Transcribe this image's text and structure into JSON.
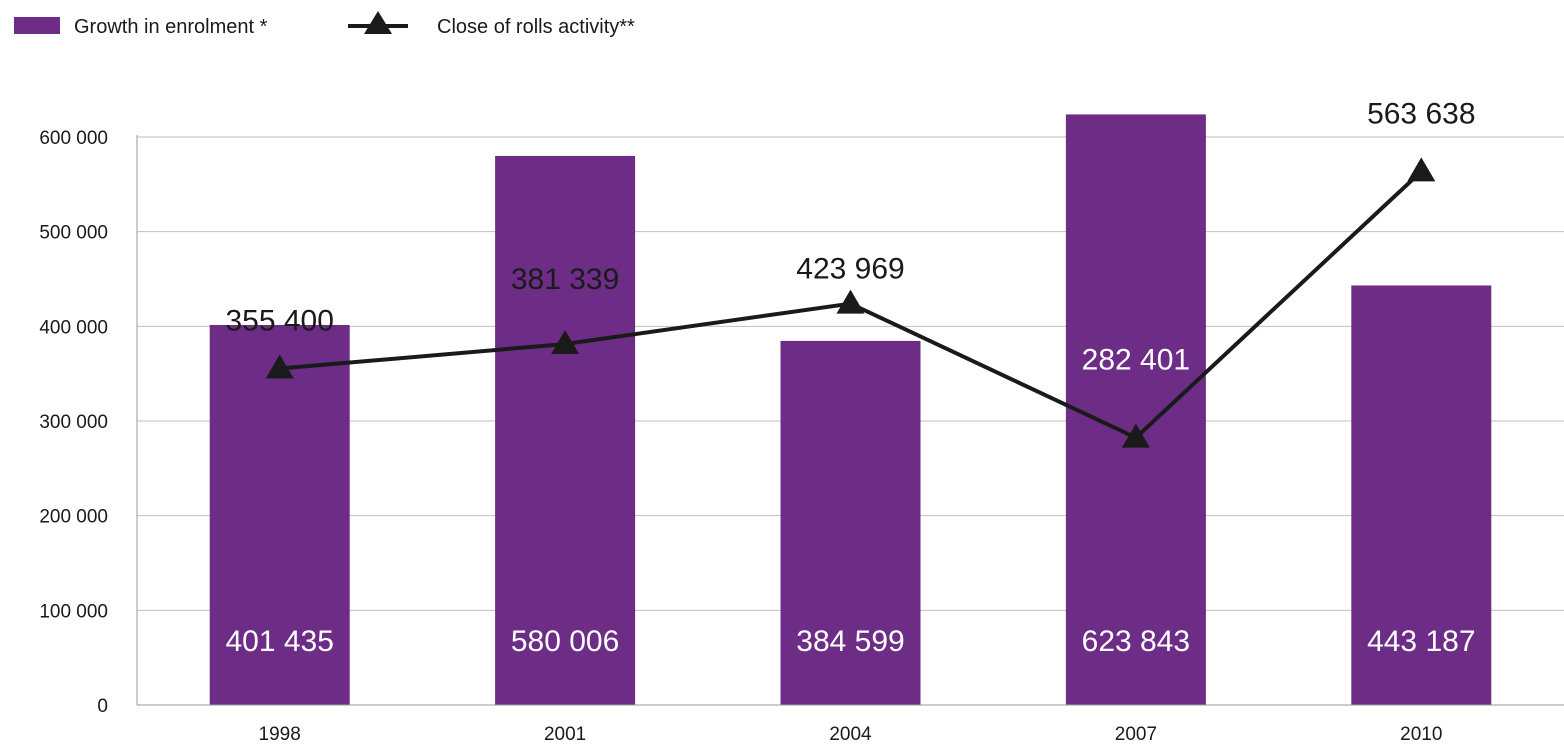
{
  "chart_data": {
    "type": "bar",
    "categories": [
      "1998",
      "2001",
      "2004",
      "2007",
      "2010"
    ],
    "series": [
      {
        "name": "Growth in enrolment *",
        "type": "bar",
        "values": [
          401435,
          580006,
          384599,
          623843,
          443187
        ],
        "labels": [
          "401 435",
          "580 006",
          "384 599",
          "623 843",
          "443 187"
        ],
        "color": "#6d2d87"
      },
      {
        "name": "Close of rolls activity**",
        "type": "line",
        "marker": "triangle",
        "values": [
          355400,
          381339,
          423969,
          282401,
          563638
        ],
        "labels": [
          "355 400",
          "381 339",
          "423 969",
          "282 401",
          "563 638"
        ],
        "color": "#1a1a1a"
      }
    ],
    "y_ticks": [
      {
        "value": 0,
        "label": "0"
      },
      {
        "value": 100000,
        "label": "100 000"
      },
      {
        "value": 200000,
        "label": "200 000"
      },
      {
        "value": 300000,
        "label": "300 000"
      },
      {
        "value": 400000,
        "label": "400 000"
      },
      {
        "value": 500000,
        "label": "500 000"
      },
      {
        "value": 600000,
        "label": "600 000"
      }
    ],
    "ylim": [
      0,
      650000
    ],
    "grid": true,
    "legend_position": "top-left"
  }
}
